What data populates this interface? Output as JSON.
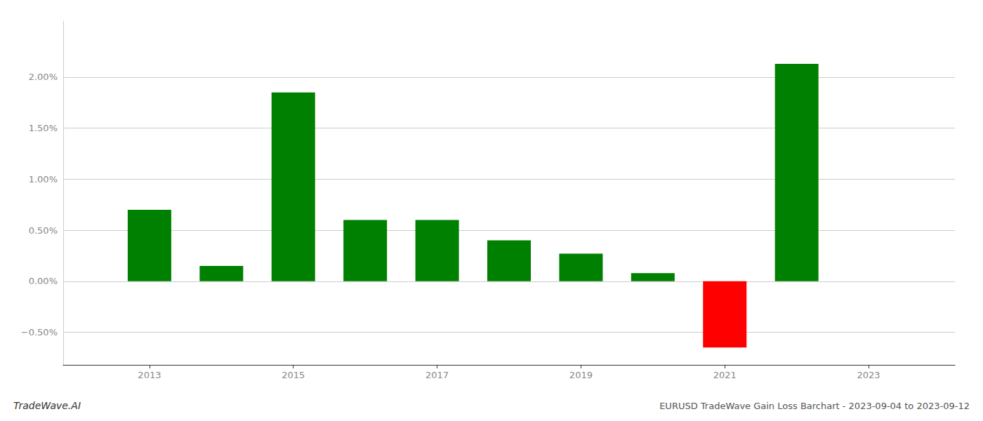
{
  "chart_data": {
    "type": "bar",
    "title": "EURUSD TradeWave Gain Loss Barchart - 2023-09-04 to 2023-09-12",
    "annotations": [
      "TradeWave.AI"
    ],
    "x": [
      2013,
      2014,
      2015,
      2016,
      2017,
      2018,
      2019,
      2020,
      2021,
      2022
    ],
    "values": [
      0.007,
      0.0015,
      0.0185,
      0.006,
      0.006,
      0.004,
      0.0027,
      0.0008,
      -0.0065,
      0.0213
    ],
    "colors": [
      "#008000",
      "#008000",
      "#008000",
      "#008000",
      "#008000",
      "#008000",
      "#008000",
      "#008000",
      "#ff0000",
      "#008000"
    ],
    "xlim": [
      2011.8,
      2024.2
    ],
    "xticks": [
      2013,
      2015,
      2017,
      2019,
      2021,
      2023
    ],
    "ylim": [
      -0.0082,
      0.0255
    ],
    "yticks": [
      {
        "value": -0.005,
        "label": "−0.50%"
      },
      {
        "value": 0.0,
        "label": "0.00%"
      },
      {
        "value": 0.005,
        "label": "0.50%"
      },
      {
        "value": 0.01,
        "label": "1.00%"
      },
      {
        "value": 0.015,
        "label": "1.50%"
      },
      {
        "value": 0.02,
        "label": "2.00%"
      }
    ],
    "grid": true
  }
}
